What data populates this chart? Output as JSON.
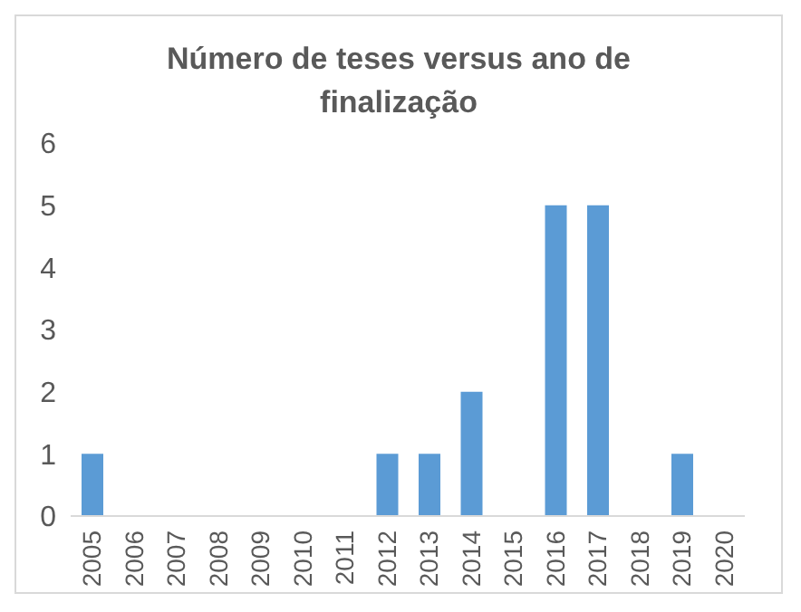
{
  "chart_data": {
    "type": "bar",
    "title": "Número de teses versus ano de finalização",
    "categories": [
      "2005",
      "2006",
      "2007",
      "2008",
      "2009",
      "2010",
      "2011",
      "2012",
      "2013",
      "2014",
      "2015",
      "2016",
      "2017",
      "2018",
      "2019",
      "2020"
    ],
    "values": [
      1,
      0,
      0,
      0,
      0,
      0,
      0,
      1,
      1,
      2,
      0,
      5,
      5,
      0,
      1,
      0
    ],
    "color": "#5b9bd5",
    "ylim": [
      0,
      6
    ],
    "yticks": [
      0,
      1,
      2,
      3,
      4,
      5,
      6
    ],
    "grid": false,
    "legend": false
  }
}
